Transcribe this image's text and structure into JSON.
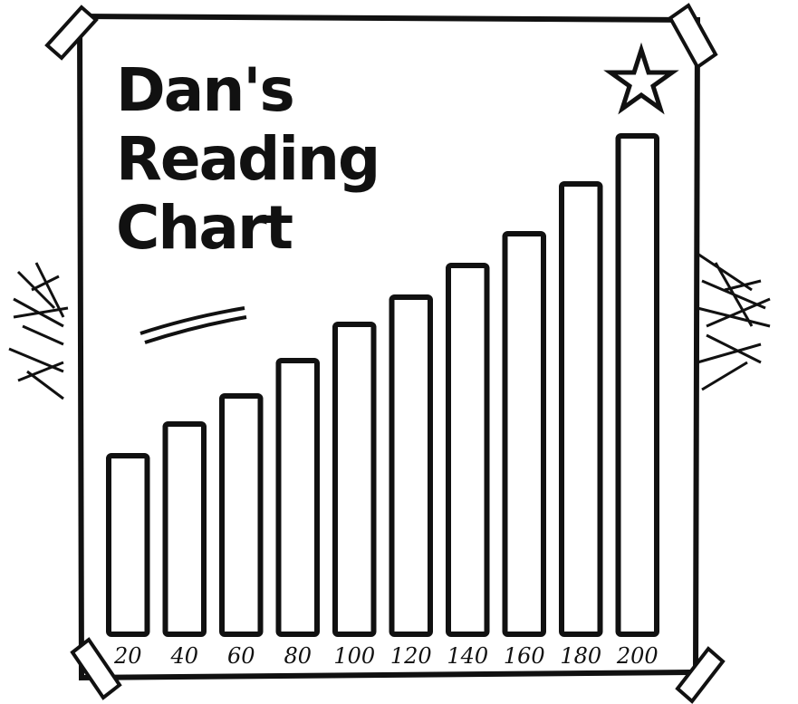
{
  "chart_data": {
    "type": "bar",
    "title": "Dan's Reading Chart",
    "categories": [
      "20",
      "40",
      "60",
      "80",
      "100",
      "120",
      "140",
      "160",
      "180",
      "200"
    ],
    "values": [
      197,
      232,
      263,
      302,
      342,
      372,
      407,
      442,
      497,
      550
    ],
    "color": "#ffffff",
    "ylim": [
      0,
      600
    ]
  }
}
